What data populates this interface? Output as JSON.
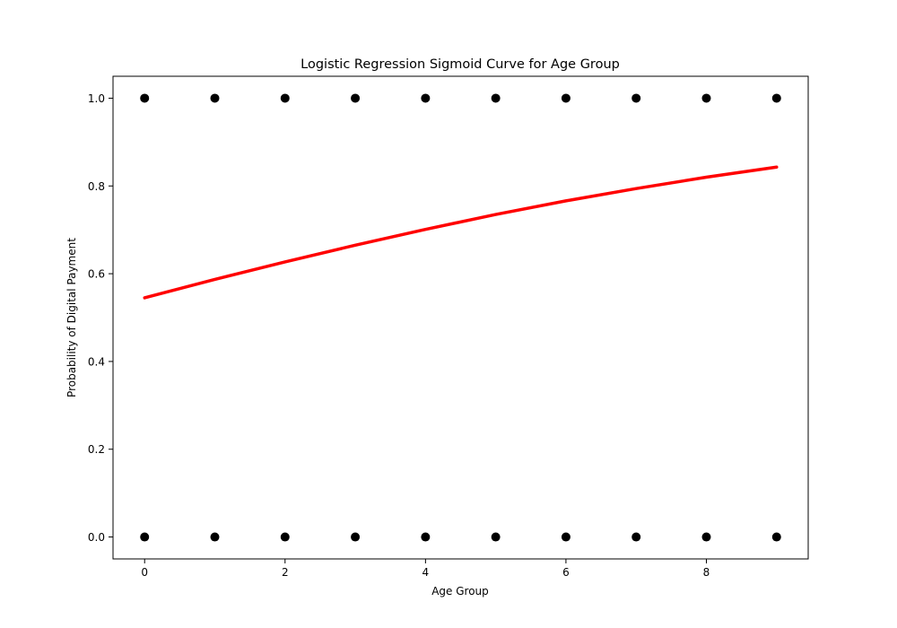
{
  "chart_data": {
    "type": "scatter",
    "title": "Logistic Regression Sigmoid Curve for Age Group",
    "xlabel": "Age Group",
    "ylabel": "Probability of Digital Payment",
    "xlim": [
      -0.45,
      9.45
    ],
    "ylim": [
      -0.05,
      1.05
    ],
    "xticks": [
      0,
      2,
      4,
      6,
      8
    ],
    "yticks": [
      0.0,
      0.2,
      0.4,
      0.6,
      0.8,
      1.0
    ],
    "ytick_labels": [
      "0.0",
      "0.2",
      "0.4",
      "0.6",
      "0.8",
      "1.0"
    ],
    "grid": false,
    "legend": false,
    "colors": {
      "points": "#000000",
      "curve": "#ff0000"
    },
    "series": [
      {
        "type": "scatter",
        "x": [
          0,
          1,
          2,
          3,
          4,
          5,
          6,
          7,
          8,
          9,
          0,
          1,
          2,
          3,
          4,
          5,
          6,
          7,
          8,
          9
        ],
        "y": [
          1,
          1,
          1,
          1,
          1,
          1,
          1,
          1,
          1,
          1,
          0,
          0,
          0,
          0,
          0,
          0,
          0,
          0,
          0,
          0
        ]
      },
      {
        "type": "line",
        "x": [
          0,
          1,
          2,
          3,
          4,
          5,
          6,
          7,
          8,
          9
        ],
        "y": [
          0.545,
          0.587,
          0.627,
          0.665,
          0.701,
          0.735,
          0.766,
          0.794,
          0.82,
          0.843
        ]
      }
    ]
  }
}
